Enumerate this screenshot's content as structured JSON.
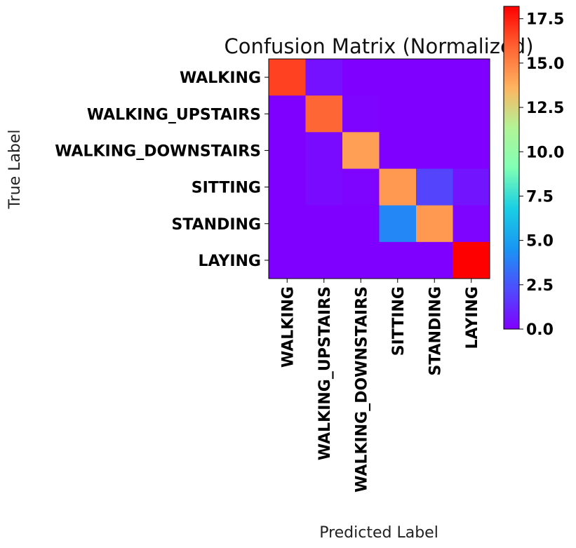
{
  "chart_data": {
    "type": "heatmap",
    "title": "Confusion Matrix (Normalized)",
    "xlabel": "Predicted Label",
    "ylabel": "True Label",
    "x_categories": [
      "WALKING",
      "WALKING_UPSTAIRS",
      "WALKING_DOWNSTAIRS",
      "SITTING",
      "STANDING",
      "LAYING"
    ],
    "y_categories": [
      "WALKING",
      "WALKING_UPSTAIRS",
      "WALKING_DOWNSTAIRS",
      "SITTING",
      "STANDING",
      "LAYING"
    ],
    "values": [
      [
        16.7,
        0.5,
        0.0,
        0.0,
        0.0,
        0.0
      ],
      [
        0.0,
        15.8,
        0.1,
        0.0,
        0.0,
        0.0
      ],
      [
        0.0,
        0.3,
        14.2,
        0.0,
        0.0,
        0.0
      ],
      [
        0.0,
        0.3,
        0.1,
        14.4,
        2.0,
        0.6
      ],
      [
        0.0,
        0.0,
        0.0,
        4.1,
        14.4,
        0.1
      ],
      [
        0.0,
        0.0,
        0.0,
        0.0,
        0.0,
        18.2
      ]
    ],
    "colormap": "rainbow",
    "colorbar": {
      "min": 0.0,
      "max": 18.2,
      "ticks": [
        0.0,
        2.5,
        5.0,
        7.5,
        10.0,
        12.5,
        15.0,
        17.5
      ],
      "tick_labels": [
        "0.0",
        "2.5",
        "5.0",
        "7.5",
        "10.0",
        "12.5",
        "15.0",
        "17.5"
      ]
    },
    "grid": false
  }
}
